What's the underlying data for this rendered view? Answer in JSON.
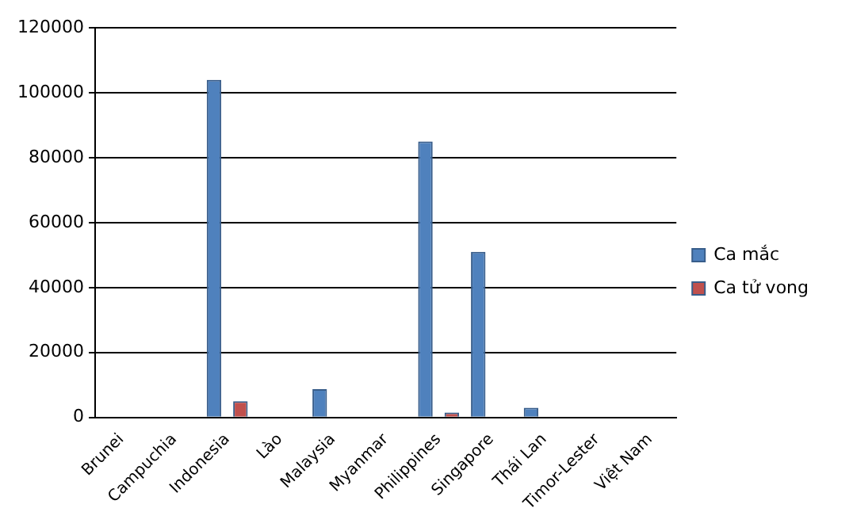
{
  "chart_data": {
    "type": "bar",
    "categories": [
      "Brunei",
      "Campuchia",
      "Indonesia",
      "Lào",
      "Malaysia",
      "Myanmar",
      "Philippines",
      "Singapore",
      "Thái Lan",
      "Timor-Lester",
      "Việt Nam"
    ],
    "series": [
      {
        "name": "Ca mắc",
        "color": "#4f81bd",
        "values": [
          0,
          0,
          104000,
          0,
          8700,
          0,
          85000,
          51000,
          3000,
          0,
          0
        ]
      },
      {
        "name": "Ca tử vong",
        "color": "#c0504d",
        "values": [
          0,
          0,
          5000,
          0,
          0,
          0,
          1500,
          0,
          0,
          0,
          0
        ]
      }
    ],
    "ylim": [
      0,
      120000
    ],
    "yticks": [
      0,
      20000,
      40000,
      60000,
      80000,
      100000,
      120000
    ],
    "grid": "y",
    "legend": "right"
  }
}
